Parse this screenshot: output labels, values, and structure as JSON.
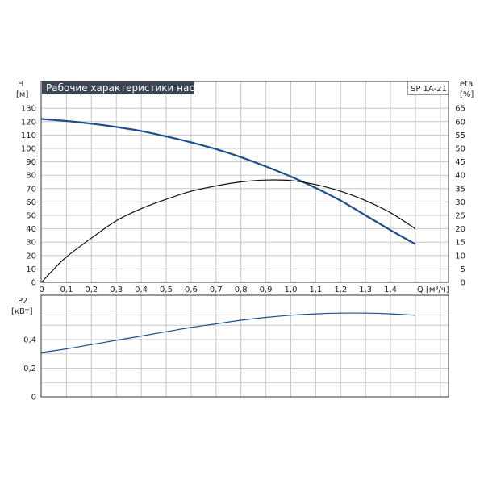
{
  "chart_data": [
    {
      "type": "line",
      "title": "Рабочие характеристики насоса",
      "model_label": "SP 1A-21",
      "xlabel": "Q [м³/ч]",
      "xlabel_q": "Q",
      "xlabel_unit": "[м³/ч]",
      "ylabel_left": [
        "H",
        "[м]"
      ],
      "ylabel_right": [
        "eta",
        "[%]"
      ],
      "xlim": [
        0,
        1.6
      ],
      "ylim_left": [
        0,
        130
      ],
      "ylim_right": [
        0,
        65
      ],
      "grid": true,
      "x_ticks": [
        "0",
        "0,1",
        "0,2",
        "0,3",
        "0,4",
        "0,5",
        "0,6",
        "0,7",
        "0,8",
        "0,9",
        "1,0",
        "1,1",
        "1,2",
        "1,3",
        "1,4"
      ],
      "y_ticks_left": [
        "0",
        "10",
        "20",
        "30",
        "40",
        "50",
        "60",
        "70",
        "80",
        "90",
        "100",
        "110",
        "120",
        "130"
      ],
      "y_ticks_right": [
        "0",
        "5",
        "10",
        "15",
        "20",
        "25",
        "30",
        "35",
        "40",
        "45",
        "50",
        "55",
        "60",
        "65"
      ],
      "series": [
        {
          "axis": "left",
          "color": "#1f4e8c",
          "x": [
            0,
            0.1,
            0.2,
            0.3,
            0.4,
            0.5,
            0.6,
            0.7,
            0.8,
            0.9,
            1.0,
            1.1,
            1.2,
            1.3,
            1.4,
            1.5
          ],
          "y": [
            122,
            120.5,
            118.5,
            116,
            113,
            109,
            104.5,
            99.5,
            93.5,
            86.5,
            79,
            70.5,
            61,
            50,
            39,
            28.5
          ]
        },
        {
          "axis": "right",
          "color": "#111111",
          "x": [
            0,
            0.05,
            0.1,
            0.2,
            0.3,
            0.4,
            0.5,
            0.6,
            0.7,
            0.8,
            0.9,
            1.0,
            1.1,
            1.2,
            1.3,
            1.4,
            1.5
          ],
          "y": [
            0,
            5,
            9.5,
            16.5,
            23,
            27.5,
            31,
            34,
            36,
            37.5,
            38.2,
            38,
            36.5,
            34,
            30.5,
            26,
            20
          ]
        }
      ]
    },
    {
      "type": "line",
      "ylabel": [
        "P2",
        "[кВт]"
      ],
      "xlim": [
        0,
        1.6
      ],
      "ylim": [
        0,
        0.7
      ],
      "grid": true,
      "y_ticks": [
        "0",
        "0,2",
        "0,4"
      ],
      "series": [
        {
          "color": "#1f4e8c",
          "x": [
            0,
            0.1,
            0.2,
            0.3,
            0.4,
            0.5,
            0.6,
            0.7,
            0.8,
            0.9,
            1.0,
            1.1,
            1.2,
            1.3,
            1.4,
            1.5
          ],
          "y": [
            0.31,
            0.335,
            0.365,
            0.395,
            0.425,
            0.455,
            0.485,
            0.51,
            0.535,
            0.555,
            0.57,
            0.58,
            0.585,
            0.585,
            0.58,
            0.57
          ]
        }
      ]
    }
  ]
}
